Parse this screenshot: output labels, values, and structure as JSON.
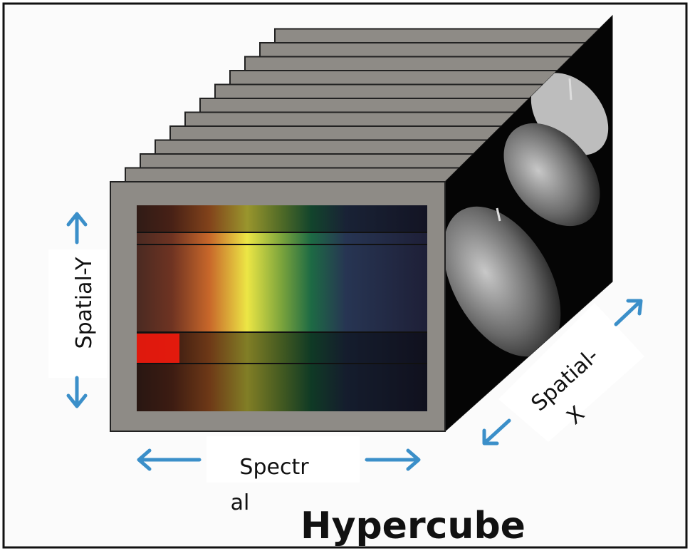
{
  "title": "Hypercube",
  "labels": {
    "spatial_y": "Spatial-Y",
    "spatial_x": [
      "Spatial-",
      "X"
    ],
    "spectral": [
      "Spectr",
      "al"
    ]
  }
}
